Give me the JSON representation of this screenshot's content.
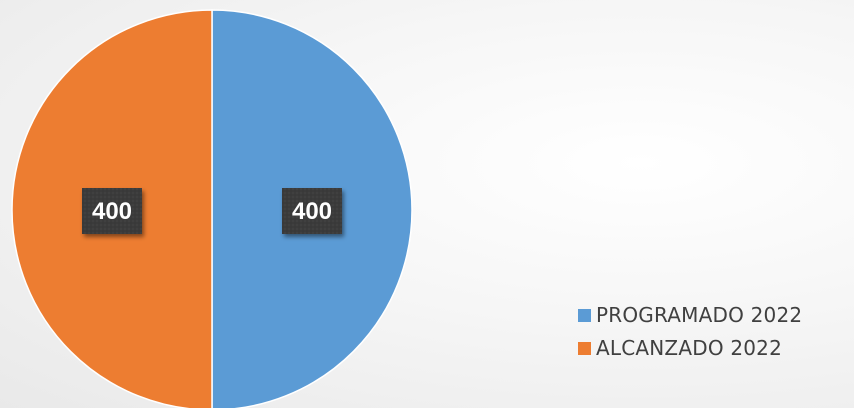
{
  "chart_data": {
    "type": "pie",
    "slices": [
      {
        "label": "PROGRAMADO 2022",
        "value": 400,
        "color": "#5b9bd5"
      },
      {
        "label": "ALCANZADO 2022",
        "value": 400,
        "color": "#ed7d31"
      }
    ],
    "data_labels": [
      "400",
      "400"
    ],
    "legend_position": "bottom-right",
    "label_style": {
      "background": "#3b3b3b",
      "text_color": "#ffffff"
    }
  }
}
